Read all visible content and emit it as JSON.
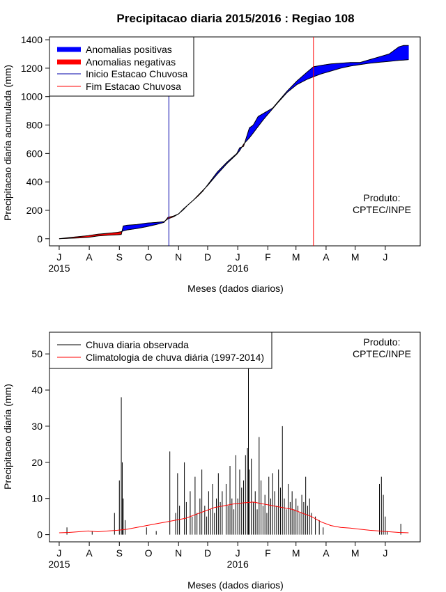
{
  "title": "Precipitacao diaria 2015/2016 : Regiao 108",
  "product_note": [
    "Produto:",
    "CPTEC/INPE"
  ],
  "chart_data": [
    {
      "type": "area",
      "name": "cumulative",
      "title": "Precipitacao diaria 2015/2016 : Regiao 108",
      "xlabel": "Meses (dados diarios)",
      "ylabel": "Precipitacao diaria acumulada (mm)",
      "ylim": [
        -50,
        1420
      ],
      "yticks": [
        0,
        200,
        400,
        600,
        800,
        1000,
        1200,
        1400
      ],
      "month_ticks": [
        "J",
        "A",
        "S",
        "O",
        "N",
        "D",
        "J",
        "F",
        "M",
        "A",
        "M",
        "J"
      ],
      "year_labels": [
        {
          "label": "2015",
          "month_index": 0
        },
        {
          "label": "2016",
          "month_index": 6
        }
      ],
      "month_days": [
        0,
        31,
        62,
        92,
        123,
        153,
        184,
        215,
        244,
        275,
        305,
        336
      ],
      "xlim": [
        -10,
        372
      ],
      "legend": {
        "position": "top-left",
        "entries": [
          "Anomalias positivas",
          "Anomalias negativas",
          "Inicio Estacao Chuvosa",
          "Fim Estacao Chuvosa"
        ]
      },
      "rainy_season": {
        "start_day": 113,
        "end_day": 262
      },
      "colors": {
        "positive": "#0000ff",
        "negative": "#ff0000",
        "start_line": "#0000aa",
        "end_line": "#ff0000",
        "observed": "#000000"
      },
      "series": [
        {
          "name": "Precipitacao observada acumulada",
          "days": [
            0,
            10,
            20,
            30,
            40,
            50,
            60,
            64,
            66,
            70,
            80,
            90,
            100,
            108,
            112,
            118,
            123,
            128,
            133,
            138,
            143,
            148,
            153,
            163,
            173,
            183,
            186,
            190,
            196,
            200,
            205,
            210,
            215,
            220,
            225,
            235,
            245,
            255,
            262,
            270,
            280,
            290,
            300,
            310,
            320,
            330,
            340,
            350,
            355,
            360
          ],
          "values": [
            0,
            3,
            6,
            10,
            20,
            25,
            28,
            30,
            90,
            95,
            100,
            110,
            115,
            120,
            140,
            155,
            175,
            210,
            240,
            270,
            300,
            335,
            380,
            470,
            540,
            600,
            640,
            650,
            780,
            800,
            860,
            880,
            900,
            920,
            960,
            1040,
            1110,
            1170,
            1210,
            1220,
            1230,
            1235,
            1240,
            1240,
            1260,
            1280,
            1300,
            1350,
            1360,
            1360
          ]
        },
        {
          "name": "Precipitacao climatologica acumulada",
          "days": [
            0,
            10,
            20,
            30,
            40,
            50,
            60,
            64,
            66,
            70,
            80,
            90,
            100,
            108,
            112,
            118,
            123,
            128,
            133,
            138,
            143,
            148,
            153,
            163,
            173,
            183,
            186,
            190,
            196,
            200,
            205,
            210,
            215,
            220,
            225,
            235,
            245,
            255,
            262,
            270,
            280,
            290,
            300,
            310,
            320,
            330,
            340,
            350,
            355,
            360
          ],
          "values": [
            0,
            8,
            15,
            22,
            32,
            38,
            45,
            50,
            55,
            62,
            72,
            85,
            100,
            115,
            150,
            160,
            175,
            205,
            240,
            270,
            305,
            340,
            375,
            455,
            530,
            595,
            620,
            665,
            710,
            745,
            790,
            835,
            875,
            915,
            955,
            1030,
            1085,
            1120,
            1140,
            1160,
            1180,
            1200,
            1215,
            1225,
            1235,
            1242,
            1248,
            1255,
            1257,
            1260
          ]
        }
      ]
    },
    {
      "type": "bar",
      "name": "daily",
      "xlabel": "Meses (dados diarios)",
      "ylabel": "Precipitacao diaria (mm)",
      "ylim": [
        -2,
        56
      ],
      "yticks": [
        0,
        10,
        20,
        30,
        40,
        50
      ],
      "month_ticks": [
        "J",
        "A",
        "S",
        "O",
        "N",
        "D",
        "J",
        "F",
        "M",
        "A",
        "M",
        "J"
      ],
      "year_labels": [
        {
          "label": "2015",
          "month_index": 0
        },
        {
          "label": "2016",
          "month_index": 6
        }
      ],
      "month_days": [
        0,
        31,
        62,
        92,
        123,
        153,
        184,
        215,
        244,
        275,
        305,
        336
      ],
      "xlim": [
        -10,
        372
      ],
      "legend": {
        "position": "top-left",
        "entries": [
          "Chuva diaria observada",
          "Climatologia de chuva diária (1997-2014)"
        ]
      },
      "colors": {
        "observed": "#000000",
        "climatology": "#ff0000"
      },
      "series": [
        {
          "name": "Chuva diaria observada",
          "days": [
            8,
            34,
            57,
            62,
            64,
            65,
            66,
            68,
            90,
            100,
            114,
            120,
            122,
            124,
            129,
            131,
            135,
            137,
            140,
            142,
            145,
            147,
            150,
            152,
            154,
            156,
            158,
            160,
            162,
            164,
            166,
            168,
            172,
            174,
            176,
            178,
            180,
            182,
            184,
            186,
            188,
            190,
            192,
            194,
            195,
            196,
            198,
            200,
            202,
            204,
            206,
            208,
            210,
            212,
            214,
            216,
            218,
            220,
            222,
            224,
            226,
            228,
            230,
            232,
            234,
            236,
            238,
            240,
            242,
            244,
            246,
            248,
            250,
            252,
            254,
            256,
            258,
            260,
            264,
            268,
            272,
            330,
            332,
            334,
            336,
            338,
            352
          ],
          "values": [
            2,
            1,
            6,
            15,
            38,
            20,
            10,
            4,
            2,
            1,
            23,
            6,
            17,
            8,
            20,
            9,
            12,
            5,
            16,
            6,
            10,
            18,
            8,
            5,
            12,
            7,
            14,
            6,
            10,
            17,
            9,
            12,
            14,
            8,
            19,
            10,
            7,
            22,
            10,
            18,
            13,
            15,
            22,
            24,
            47,
            18,
            21,
            9,
            12,
            7,
            27,
            15,
            8,
            11,
            6,
            16,
            10,
            17,
            12,
            8,
            18,
            13,
            30,
            10,
            7,
            14,
            9,
            12,
            7,
            10,
            8,
            6,
            11,
            9,
            16,
            8,
            10,
            6,
            5,
            4,
            2,
            14,
            16,
            11,
            5,
            1,
            3
          ]
        },
        {
          "name": "Climatologia de chuva diária (1997-2014)",
          "days": [
            0,
            10,
            20,
            30,
            40,
            50,
            60,
            70,
            80,
            90,
            100,
            110,
            120,
            130,
            140,
            150,
            160,
            170,
            180,
            190,
            200,
            210,
            220,
            230,
            240,
            250,
            260,
            270,
            280,
            290,
            300,
            310,
            320,
            330,
            340,
            350,
            360
          ],
          "values": [
            0.5,
            0.6,
            0.8,
            1.0,
            0.8,
            1.0,
            1.2,
            1.5,
            2.0,
            2.5,
            3.0,
            3.5,
            4.0,
            4.5,
            5.5,
            6.5,
            7.5,
            8.0,
            8.5,
            8.8,
            9.0,
            8.5,
            8.0,
            7.5,
            7.0,
            6.0,
            5.0,
            3.5,
            2.5,
            2.0,
            1.8,
            1.5,
            1.2,
            1.0,
            0.8,
            0.6,
            0.5
          ]
        }
      ]
    }
  ]
}
